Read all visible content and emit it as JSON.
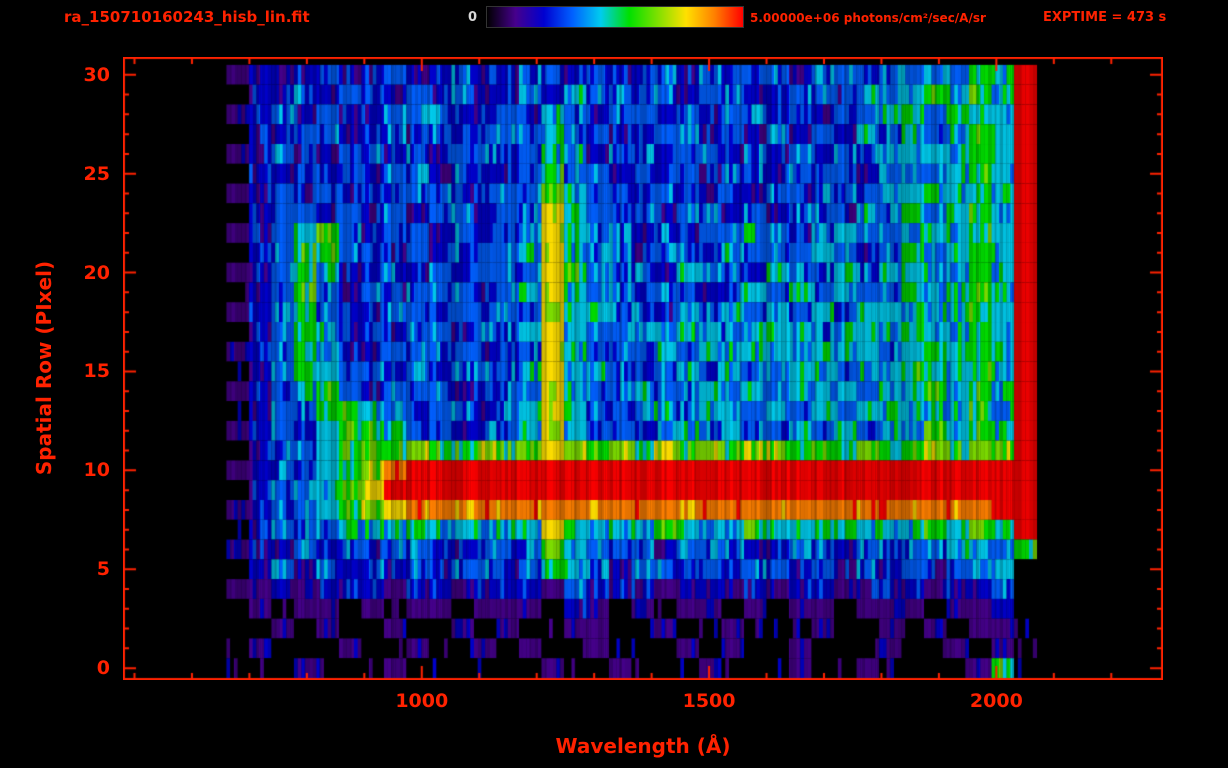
{
  "colors": {
    "background": "#000000",
    "axis_red": "#ff2200",
    "colorbar_zero_label": "#d8d8d8"
  },
  "header": {
    "filename": "ra_150710160243_hisb_lin.fit",
    "exptime": "EXPTIME = 473 s",
    "colorbar": {
      "min_label": "0",
      "max_label": "5.00000e+06 photons/cm²/sec/A/sr"
    }
  },
  "chart_data": {
    "type": "heatmap",
    "title": "ra_150710160243_hisb_lin.fit",
    "xlabel": "Wavelength (Å)",
    "ylabel": "Spatial Row (PIxel)",
    "x_ticks": [
      1000,
      1500,
      2000
    ],
    "x_minor_tick_step": 100,
    "y_ticks": [
      0,
      5,
      10,
      15,
      20,
      25,
      30
    ],
    "y_minor_tick_step": 1,
    "xlim": [
      480,
      2290
    ],
    "ylim": [
      -0.6,
      30.9
    ],
    "colorbar_range": [
      0,
      5000000
    ],
    "colorbar_units": "photons/cm²/sec/A/sr",
    "exposure_time_s": 473,
    "data_wavelength_range": [
      660,
      2070
    ],
    "nrows": 31,
    "ncols": 36,
    "value_scale": "digits 0-9 map linearly from 0 to 5.00000e+06 photons/cm²/sec/A/sr",
    "row_order_note": "first string is spatial row 30 (top), last string is row 0 (bottom); each char is one wavelength bin from 660 to 2070 Å",
    "colormap": [
      "#000000",
      "#46008c",
      "#0000d0",
      "#0060ff",
      "#00ccee",
      "#00e000",
      "#7fe000",
      "#ffe000",
      "#ff8000",
      "#ff0000"
    ],
    "rows_top_to_bottom": [
      "122232232232233232232322323323343549",
      "022323323232232433232332233243454549",
      "123232233322324323323233232334535449",
      "022332232323334332233232323243434549",
      "123223323233234423323323232334444549",
      "022323233232235332323233233323434549",
      "123232323323336433233232323334444549",
      "023323232332337433323323233243534549",
      "123453233232337433232334323433444549",
      "023553323233347433233243334323534549",
      "123542232323337533324332433434444549",
      "023532323332347433233234343433534549",
      "123533233233337443324343434344444549",
      "023542323323347433334434443444544549",
      "123532233332337433343444434443454549",
      "023543323233347443334343444344544549",
      "123453233323337433433434344434454549",
      "023355432332347433343443434344444549",
      "123245543323347433234343343434454549",
      "023345556556567656565656656565565669",
      "123345689999999999999999999999999999",
      "023346799999999999999999999999999999",
      "123345678888888888888888888888888899",
      "023334445444447544454445444544454559",
      "122323233323336433323332233233334435",
      "023232323233235432332323323232323340",
      "112122212212221322212212122122212230",
      "010110101101110210101101011011101120",
      "001010010010100110010010001001010110",
      "010001001001010010001010010001001010",
      "000100010000001001000100010010000150"
    ],
    "features": [
      "bright vertical emission column at ~1200 Å spanning rows ~5-25",
      "saturated red horizontal band at rows 9-10 from ~950 Å to ~2070 Å",
      "orange horizontal band at row 8",
      "green horizontal band at row 11",
      "C-shaped green arc near 780-900 Å between rows 12 and 22",
      "green vertical band near 1950-2000 Å",
      "saturated red column at the right data edge near 2060 Å"
    ]
  }
}
